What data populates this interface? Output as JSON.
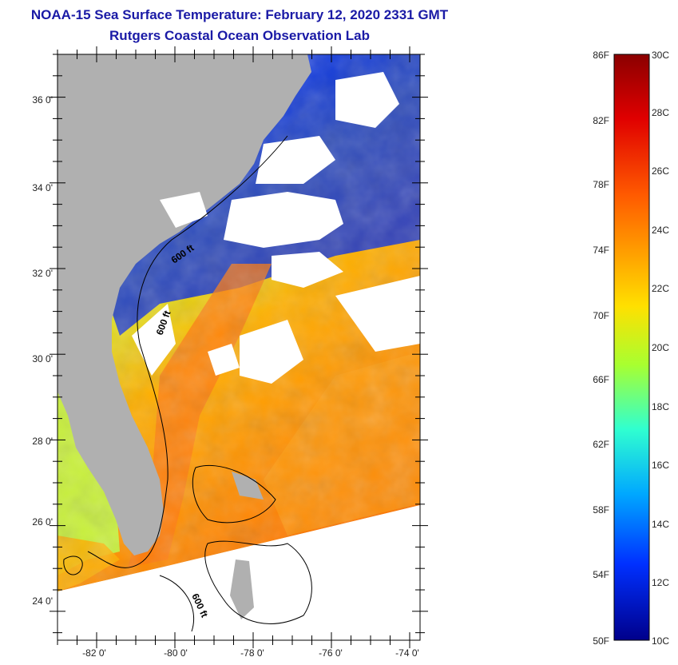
{
  "header": {
    "title": "NOAA-15 Sea Surface Temperature:  February 12, 2020 2331 GMT",
    "subtitle": "Rutgers Coastal Ocean Observation Lab"
  },
  "map": {
    "lat_labels": [
      "36 0'",
      "34 0'",
      "32 0'",
      "30 0'",
      "28 0'",
      "26 0'",
      "24 0'"
    ],
    "lon_labels": [
      "-82 0'",
      "-80 0'",
      "-78 0'",
      "-76 0'",
      "-74 0'"
    ],
    "contour_labels": [
      "600 ft",
      "600 ft",
      "600 ft"
    ],
    "colors": {
      "land": "#b0b0b0",
      "cloud": "#ffffff",
      "frame": "#000000"
    }
  },
  "colorbar": {
    "fahrenheit_labels": [
      "86F",
      "82F",
      "78F",
      "74F",
      "70F",
      "66F",
      "62F",
      "58F",
      "54F",
      "50F"
    ],
    "celsius_labels": [
      "30C",
      "28C",
      "26C",
      "24C",
      "22C",
      "20C",
      "18C",
      "16C",
      "14C",
      "12C",
      "10C"
    ],
    "gradient": [
      "#8b0000",
      "#e00000",
      "#ff5a00",
      "#ffa000",
      "#ffe000",
      "#a8ff30",
      "#30ffd0",
      "#00a8ff",
      "#0030ff",
      "#00008b"
    ]
  }
}
